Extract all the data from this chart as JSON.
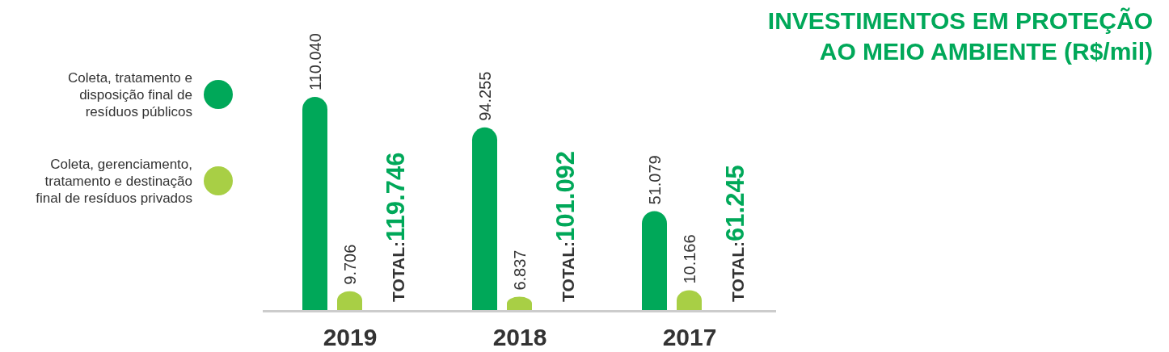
{
  "chart_data": {
    "type": "bar",
    "title": "INVESTIMENTOS EM PROTEÇÃO AO MEIO AMBIENTE (R$/mil)",
    "categories": [
      "2019",
      "2018",
      "2017"
    ],
    "series": [
      {
        "name": "Coleta, tratamento e disposição final de resíduos públicos",
        "color": "#00a859",
        "values": [
          110040,
          94255,
          51079
        ],
        "value_labels": [
          "110.040",
          "94.255",
          "51.079"
        ]
      },
      {
        "name": "Coleta, gerenciamento, tratamento e destinação final de resíduos privados",
        "color": "#a8cf45",
        "values": [
          9706,
          6837,
          10166
        ],
        "value_labels": [
          "9.706",
          "6.837",
          "10.166"
        ]
      }
    ],
    "totals": [
      "TOTAL:119.746",
      "TOTAL:101.092",
      "TOTAL:61.245"
    ],
    "legend": "left"
  }
}
